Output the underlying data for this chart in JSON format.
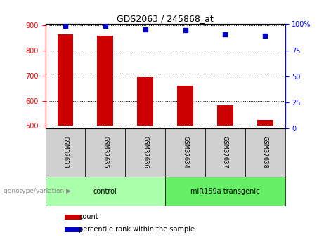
{
  "title": "GDS2063 / 245868_at",
  "samples": [
    "GSM37633",
    "GSM37635",
    "GSM37636",
    "GSM37634",
    "GSM37637",
    "GSM37638"
  ],
  "counts": [
    865,
    858,
    693,
    660,
    583,
    523
  ],
  "percentile_ranks": [
    98,
    98,
    95,
    94,
    90,
    89
  ],
  "ylim_left": [
    490,
    905
  ],
  "ylim_right": [
    0,
    100
  ],
  "yticks_left": [
    500,
    600,
    700,
    800,
    900
  ],
  "yticks_right": [
    0,
    25,
    50,
    75,
    100
  ],
  "bar_color": "#cc0000",
  "dot_color": "#0000cc",
  "bar_bottom": 500,
  "bar_width": 0.4,
  "groups": [
    {
      "label": "control",
      "indices": [
        0,
        1,
        2
      ],
      "color": "#aaffaa"
    },
    {
      "label": "miR159a transgenic",
      "indices": [
        3,
        4,
        5
      ],
      "color": "#66ee66"
    }
  ],
  "genotype_label": "genotype/variation",
  "legend_count_label": "count",
  "legend_pct_label": "percentile rank within the sample",
  "background_color": "#ffffff",
  "sample_box_color": "#d0d0d0",
  "title_fontsize": 9,
  "axis_fontsize": 7,
  "label_fontsize": 7,
  "legend_fontsize": 7
}
